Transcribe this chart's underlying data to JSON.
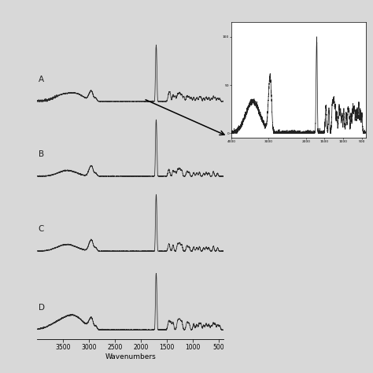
{
  "xlabel": "Wavenumbers",
  "bg_color": "#e8e8e8",
  "labels": [
    "A",
    "B",
    "C",
    "D"
  ],
  "xticks": [
    3500,
    3000,
    2500,
    2000,
    1500,
    1000,
    500
  ],
  "xtick_labels": [
    "3500",
    "3000",
    "2500",
    "2000",
    "1500",
    "1000",
    "500"
  ],
  "line_color": "#222222",
  "inset_bg": "#ffffff"
}
